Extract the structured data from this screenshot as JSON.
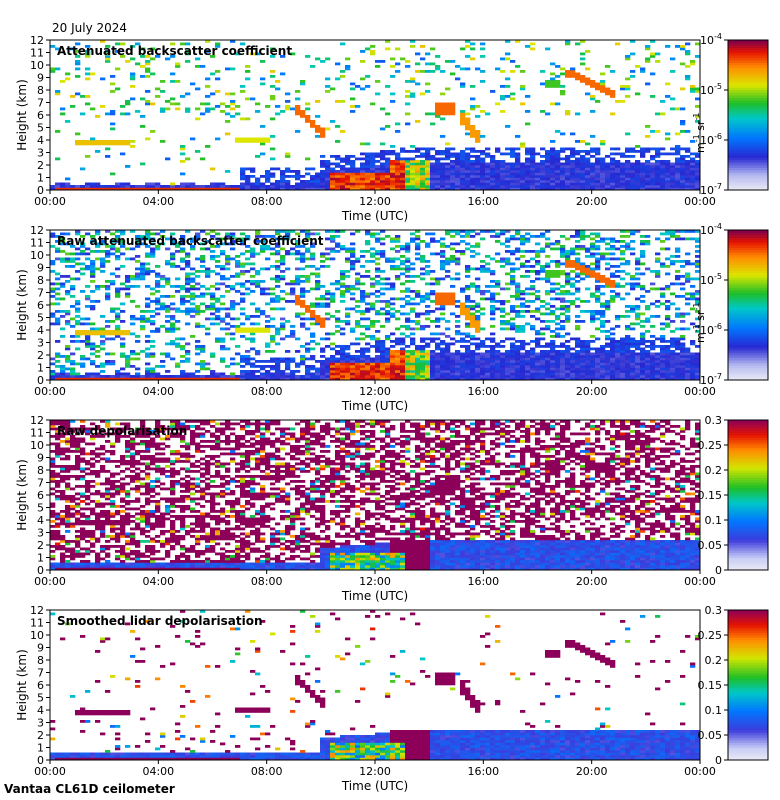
{
  "date_label": "20 July 2024",
  "instrument_label": "Vantaa CL61D ceilometer",
  "chart_data": [
    {
      "type": "heatmap",
      "title": "Attenuated backscatter coefficient",
      "xlabel": "Time (UTC)",
      "ylabel": "Height (km)",
      "xticks": [
        "00:00",
        "04:00",
        "08:00",
        "12:00",
        "16:00",
        "20:00",
        "00:00"
      ],
      "yticks": [
        0,
        1,
        2,
        3,
        4,
        5,
        6,
        7,
        8,
        9,
        10,
        11,
        12
      ],
      "xlim_hours": [
        0,
        24
      ],
      "ylim_km": [
        0,
        12
      ],
      "colorbar": {
        "scale": "log",
        "min": 1e-07,
        "max": 0.0001,
        "ticks": [
          {
            "base": "10",
            "exp": "-7"
          },
          {
            "base": "10",
            "exp": "-6"
          },
          {
            "base": "10",
            "exp": "-5"
          },
          {
            "base": "10",
            "exp": "-4"
          }
        ],
        "unit": {
          "a": "m",
          "a_exp": "-1",
          "b": "sr",
          "b_exp": "-1"
        }
      }
    },
    {
      "type": "heatmap",
      "title": "Raw attenuated backscatter coefficient",
      "xlabel": "Time (UTC)",
      "ylabel": "Height (km)",
      "xticks": [
        "00:00",
        "04:00",
        "08:00",
        "12:00",
        "16:00",
        "20:00",
        "00:00"
      ],
      "yticks": [
        0,
        1,
        2,
        3,
        4,
        5,
        6,
        7,
        8,
        9,
        10,
        11,
        12
      ],
      "xlim_hours": [
        0,
        24
      ],
      "ylim_km": [
        0,
        12
      ],
      "colorbar": {
        "scale": "log",
        "min": 1e-07,
        "max": 0.0001,
        "ticks": [
          {
            "base": "10",
            "exp": "-7"
          },
          {
            "base": "10",
            "exp": "-6"
          },
          {
            "base": "10",
            "exp": "-5"
          },
          {
            "base": "10",
            "exp": "-4"
          }
        ],
        "unit": {
          "a": "m",
          "a_exp": "-1",
          "b": "sr",
          "b_exp": "-1"
        }
      }
    },
    {
      "type": "heatmap",
      "title": "Raw depolarisation",
      "xlabel": "Time (UTC)",
      "ylabel": "Height (km)",
      "xticks": [
        "00:00",
        "04:00",
        "08:00",
        "12:00",
        "16:00",
        "20:00",
        "00:00"
      ],
      "yticks": [
        0,
        1,
        2,
        3,
        4,
        5,
        6,
        7,
        8,
        9,
        10,
        11,
        12
      ],
      "xlim_hours": [
        0,
        24
      ],
      "ylim_km": [
        0,
        12
      ],
      "colorbar": {
        "scale": "linear",
        "min": 0,
        "max": 0.3,
        "ticks": [
          "0",
          "0.05",
          "0.1",
          "0.15",
          "0.2",
          "0.25",
          "0.3"
        ]
      }
    },
    {
      "type": "heatmap",
      "title": "Smoothed lidar depolarisation",
      "xlabel": "Time (UTC)",
      "ylabel": "Height (km)",
      "xticks": [
        "00:00",
        "04:00",
        "08:00",
        "12:00",
        "16:00",
        "20:00",
        "00:00"
      ],
      "yticks": [
        0,
        1,
        2,
        3,
        4,
        5,
        6,
        7,
        8,
        9,
        10,
        11,
        12
      ],
      "xlim_hours": [
        0,
        24
      ],
      "ylim_km": [
        0,
        12
      ],
      "colorbar": {
        "scale": "linear",
        "min": 0,
        "max": 0.3,
        "ticks": [
          "0",
          "0.05",
          "0.1",
          "0.15",
          "0.2",
          "0.25",
          "0.3"
        ]
      }
    }
  ]
}
